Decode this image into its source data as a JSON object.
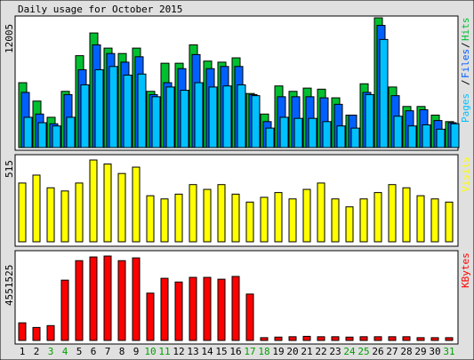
{
  "title": "Daily usage for October 2015",
  "colors": {
    "background": "#e0e0e0",
    "panel": "#ffffff",
    "border": "#000000",
    "hits": "#00c030",
    "files": "#0060ff",
    "pages": "#00c0ff",
    "visits": "#ffff00",
    "kbytes": "#ff0000",
    "weekday_label": "#000000",
    "weekend_label": "#00a000"
  },
  "panels": {
    "top": {
      "max_label": "12005",
      "legend": [
        "Pages",
        "Files",
        "Hits"
      ]
    },
    "middle": {
      "max_label": "515",
      "legend": [
        "Visits"
      ]
    },
    "bottom": {
      "max_label": "4551525",
      "legend": [
        "KBytes"
      ]
    }
  },
  "days": [
    "1",
    "2",
    "3",
    "4",
    "5",
    "6",
    "7",
    "8",
    "9",
    "10",
    "11",
    "12",
    "13",
    "14",
    "15",
    "16",
    "17",
    "18",
    "19",
    "20",
    "21",
    "22",
    "23",
    "24",
    "25",
    "26",
    "27",
    "28",
    "29",
    "30",
    "31"
  ],
  "weekend_days": [
    3,
    4,
    10,
    11,
    17,
    18,
    24,
    25,
    31
  ],
  "chart_data": [
    {
      "type": "bar",
      "categories": [
        "1",
        "2",
        "3",
        "4",
        "5",
        "6",
        "7",
        "8",
        "9",
        "10",
        "11",
        "12",
        "13",
        "14",
        "15",
        "16",
        "17",
        "18",
        "19",
        "20",
        "21",
        "22",
        "23",
        "24",
        "25",
        "26",
        "27",
        "28",
        "29",
        "30",
        "31"
      ],
      "ylim": [
        0,
        12005
      ],
      "series": [
        {
          "name": "Hits",
          "values": [
            6000,
            4300,
            2800,
            5200,
            8500,
            10600,
            9200,
            8700,
            9200,
            5200,
            7800,
            7800,
            9500,
            8000,
            7900,
            8300,
            5000,
            3100,
            5700,
            5200,
            5500,
            5400,
            4600,
            3000,
            5900,
            12000,
            5600,
            3800,
            3800,
            3000,
            2400
          ]
        },
        {
          "name": "Files",
          "values": [
            5100,
            3100,
            2200,
            4900,
            7200,
            9500,
            8700,
            7900,
            8400,
            4900,
            6000,
            7300,
            8600,
            7300,
            7500,
            7500,
            4900,
            2400,
            4700,
            4700,
            4700,
            4600,
            4000,
            3000,
            5100,
            11300,
            4800,
            3400,
            3500,
            2500,
            2300
          ]
        },
        {
          "name": "Pages",
          "values": [
            2800,
            2300,
            2000,
            2800,
            5800,
            7200,
            7500,
            6700,
            6800,
            4700,
            5600,
            5300,
            6000,
            5600,
            5700,
            5800,
            4800,
            1800,
            2800,
            2700,
            2700,
            2400,
            2000,
            1800,
            4900,
            10000,
            2900,
            2000,
            2100,
            1700,
            2200
          ]
        }
      ]
    },
    {
      "type": "bar",
      "categories": [
        "1",
        "2",
        "3",
        "4",
        "5",
        "6",
        "7",
        "8",
        "9",
        "10",
        "11",
        "12",
        "13",
        "14",
        "15",
        "16",
        "17",
        "18",
        "19",
        "20",
        "21",
        "22",
        "23",
        "24",
        "25",
        "26",
        "27",
        "28",
        "29",
        "30",
        "31"
      ],
      "ylim": [
        0,
        515
      ],
      "series": [
        {
          "name": "Visits",
          "values": [
            370,
            420,
            340,
            320,
            370,
            515,
            490,
            430,
            470,
            290,
            270,
            300,
            360,
            330,
            360,
            300,
            250,
            280,
            310,
            270,
            330,
            370,
            270,
            220,
            270,
            310,
            360,
            340,
            290,
            270,
            250
          ]
        }
      ]
    },
    {
      "type": "bar",
      "categories": [
        "1",
        "2",
        "3",
        "4",
        "5",
        "6",
        "7",
        "8",
        "9",
        "10",
        "11",
        "12",
        "13",
        "14",
        "15",
        "16",
        "17",
        "18",
        "19",
        "20",
        "21",
        "22",
        "23",
        "24",
        "25",
        "26",
        "27",
        "28",
        "29",
        "30",
        "31"
      ],
      "ylim": [
        0,
        4551525
      ],
      "series": [
        {
          "name": "KBytes",
          "values": [
            950000,
            700000,
            800000,
            3250000,
            4300000,
            4500000,
            4550000,
            4300000,
            4450000,
            2550000,
            3350000,
            3150000,
            3400000,
            3400000,
            3300000,
            3450000,
            2500000,
            150000,
            180000,
            200000,
            220000,
            200000,
            200000,
            180000,
            200000,
            200000,
            200000,
            200000,
            150000,
            150000,
            150000
          ]
        }
      ]
    }
  ]
}
